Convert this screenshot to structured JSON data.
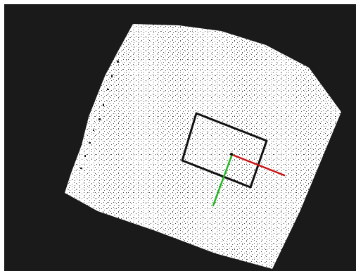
{
  "viewer": {
    "background_color": "#1a1a1a",
    "cloud_color": "#ffffff",
    "speckle_color": "#4a4a4a",
    "outline_color": "#111111",
    "axes": {
      "x_axis_color": "#c81414",
      "y_axis_color": "#22b822"
    }
  }
}
